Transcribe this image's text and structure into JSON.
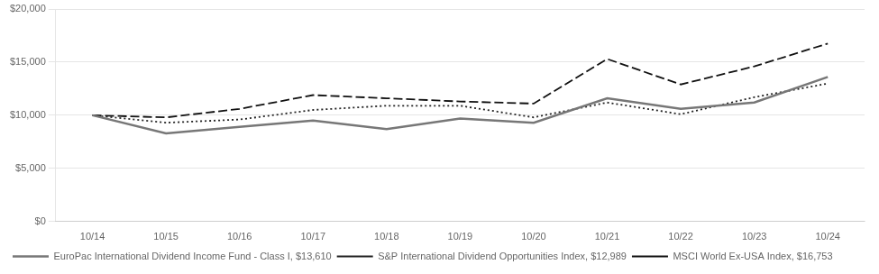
{
  "chart_data": {
    "type": "line",
    "categories": [
      "10/14",
      "10/15",
      "10/16",
      "10/17",
      "10/18",
      "10/19",
      "10/20",
      "10/21",
      "10/22",
      "10/23",
      "10/24"
    ],
    "series": [
      {
        "name": "EuroPac International Dividend Income Fund - Class I, $13,610",
        "color": "#777777",
        "line_style": "solid",
        "values": [
          10000,
          8300,
          8900,
          9500,
          8700,
          9700,
          9300,
          11600,
          10600,
          11200,
          13610
        ]
      },
      {
        "name": "S&P International Dividend Opportunities Index, $12,989",
        "color": "#222222",
        "line_style": "dotted",
        "values": [
          10000,
          9300,
          9600,
          10500,
          10900,
          10900,
          9800,
          11200,
          10100,
          11700,
          12989
        ]
      },
      {
        "name": "MSCI World Ex-USA Index, $16,753",
        "color": "#111111",
        "line_style": "dashed",
        "values": [
          10000,
          9800,
          10600,
          11900,
          11600,
          11300,
          11100,
          15300,
          12900,
          14600,
          16753
        ]
      }
    ],
    "ylim": [
      0,
      20000
    ],
    "yticks": [
      {
        "value": 0,
        "label": "$0"
      },
      {
        "value": 5000,
        "label": "$5,000"
      },
      {
        "value": 10000,
        "label": "$10,000"
      },
      {
        "value": 15000,
        "label": "$15,000"
      },
      {
        "value": 20000,
        "label": "$20,000"
      }
    ],
    "grid": true,
    "legend": "bottom"
  }
}
